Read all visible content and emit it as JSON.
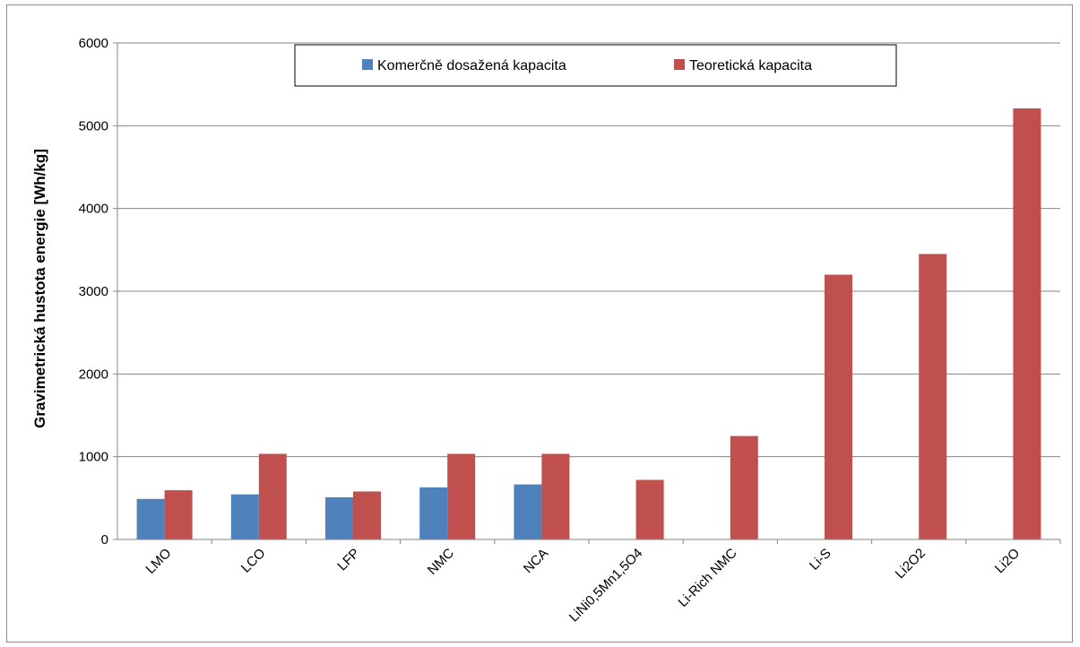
{
  "chart_data": {
    "type": "bar",
    "categories": [
      "LMO",
      "LCO",
      "LFP",
      "NMC",
      "NCA",
      "LiNi0,5Mn1,5O4",
      "Li-Rich NMC",
      "Li-S",
      "Li2O2",
      "Li2O"
    ],
    "series": [
      {
        "name": "Komerčně dosažená kapacita",
        "color": "#4f81bd",
        "values": [
          490,
          545,
          510,
          630,
          665,
          null,
          null,
          null,
          null,
          null
        ]
      },
      {
        "name": "Teoretická kapacita",
        "color": "#c0504d",
        "values": [
          595,
          1035,
          580,
          1035,
          1035,
          720,
          1250,
          3200,
          3450,
          5210
        ]
      }
    ],
    "title": "",
    "xlabel": "",
    "ylabel": "Gravimetrická hustota energie [Wh/kg]",
    "ylim": [
      0,
      6000
    ],
    "yticks": [
      "0",
      "1000",
      "2000",
      "3000",
      "4000",
      "5000",
      "6000"
    ],
    "grid": true,
    "legend_position": "top-center"
  }
}
